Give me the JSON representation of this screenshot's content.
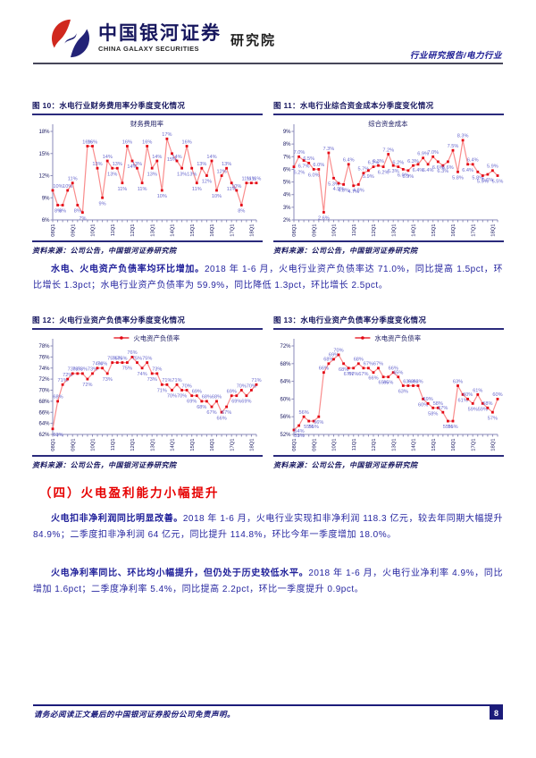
{
  "header": {
    "brand_cn": "中国银河证券",
    "brand_en": "CHINA GALAXY SECURITIES",
    "brand_suffix": "研究院",
    "doc_type": "行业研究报告/电力行业"
  },
  "colors": {
    "navy": "#16165f",
    "body_blue": "#2626a0",
    "heading_red": "#e60000",
    "line_salmon": "#f98c8c",
    "marker_red": "#e30613",
    "data_label_purple": "#6a6ace",
    "logo_red": "#d0281e",
    "logo_blue": "#232377",
    "footer_navy": "#1c1c7a"
  },
  "paragraphs": {
    "p1": {
      "bold": "水电、火电资产负债率均环比增加。",
      "rest": "2018 年 1-6 月，火电行业资产负债率达 71.0%，同比提高 1.5pct，环比增长 1.3pct；水电行业资产负债率为 59.9%，同比降低 1.3pct，环比增长 2.5pct。"
    },
    "p2": {
      "bold": "火电扣非净利润同比明显改善。",
      "rest": "2018 年 1-6 月，火电行业实现扣非净利润 118.3 亿元，较去年同期大幅提升 84.9%；二季度扣非净利润 64 亿元，同比提升 114.8%，环比今年一季度增加 18.0%。"
    },
    "p3": {
      "bold": "火电净利率同比、环比均小幅提升，但仍处于历史较低水平。",
      "rest": "2018 年 1-6 月，火电行业净利率 4.9%，同比增加 1.6pct；二季度净利率 5.4%，同比提高 2.2pct，环比一季度提升 0.9pct。"
    }
  },
  "section": {
    "heading": "（四）火电盈利能力小幅提升"
  },
  "footer": {
    "disclaimer": "请务必阅读正文最后的中国银河证券股份公司免责声明。",
    "page_number": "8"
  },
  "quarters": [
    "08Q1",
    "08Q2",
    "08Q3",
    "08Q4",
    "09Q1",
    "09Q2",
    "09Q3",
    "09Q4",
    "10Q1",
    "10Q2",
    "10Q3",
    "10Q4",
    "11Q1",
    "11Q2",
    "11Q3",
    "11Q4",
    "12Q1",
    "12Q2",
    "12Q3",
    "12Q4",
    "13Q1",
    "13Q2",
    "13Q3",
    "13Q4",
    "14Q1",
    "14Q2",
    "14Q3",
    "14Q4",
    "15Q1",
    "15Q2",
    "15Q3",
    "15Q4",
    "16Q1",
    "16Q2",
    "16Q3",
    "16Q4",
    "17Q1",
    "17Q2",
    "17Q3",
    "17Q4",
    "18Q1",
    "18Q2"
  ],
  "xtick_indices": [
    0,
    4,
    8,
    12,
    16,
    20,
    24,
    28,
    32,
    36,
    40
  ],
  "chart_data": [
    {
      "type": "line",
      "title": "图 10：水电行业财务费用率分季度变化情况",
      "legend": "财务费用率",
      "legend_marker": false,
      "source": "资料来源：公司公告，中国银河证券研究院",
      "xlabel": "",
      "ylabel": "",
      "ylim": [
        6,
        18
      ],
      "yticks": [
        6,
        9,
        12,
        15,
        18
      ],
      "decimals": 0,
      "unit": "%",
      "values": [
        10,
        8,
        8,
        10,
        11,
        8,
        7,
        16,
        16,
        13,
        9,
        14,
        13,
        13,
        11,
        16,
        14,
        13,
        11,
        16,
        13,
        14,
        10,
        17,
        15,
        14,
        13,
        16,
        13,
        11,
        13,
        12,
        14,
        10,
        12,
        13,
        11,
        10,
        8,
        11,
        11,
        11
      ]
    },
    {
      "type": "line",
      "title": "图 11：水电行业综合资金成本分季度变化情况",
      "legend": "综合资金成本",
      "legend_marker": false,
      "source": "资料来源：公司公告，中国银河证券研究院",
      "xlabel": "",
      "ylabel": "",
      "ylim": [
        2,
        9
      ],
      "yticks": [
        2,
        3,
        4,
        5,
        6,
        7,
        8,
        9
      ],
      "decimals": 1,
      "unit": "%",
      "values": [
        6.2,
        7.0,
        6.7,
        6.5,
        6.0,
        6.0,
        2.6,
        7.3,
        5.3,
        4.9,
        4.8,
        6.4,
        4.7,
        4.8,
        5.7,
        5.9,
        6.2,
        6.3,
        6.2,
        7.2,
        6.3,
        6.2,
        6.0,
        5.9,
        6.3,
        6.4,
        6.9,
        6.4,
        7.0,
        6.6,
        6.3,
        6.6,
        7.5,
        5.8,
        8.3,
        6.4,
        6.4,
        5.8,
        5.5,
        5.6,
        5.9,
        5.5
      ]
    },
    {
      "type": "line",
      "title": "图 12：火电行业资产负债率分季度变化情况",
      "legend": "火电资产负债率",
      "legend_marker": true,
      "source": "资料来源：公司公告，中国银河证券研究院",
      "xlabel": "",
      "ylabel": "",
      "ylim": [
        62,
        78
      ],
      "yticks": [
        62,
        64,
        66,
        68,
        70,
        72,
        74,
        76,
        78
      ],
      "decimals": 0,
      "unit": "%",
      "values": [
        63,
        68,
        71,
        72,
        73,
        73,
        73,
        72,
        73,
        74,
        74,
        73,
        75,
        75,
        75,
        75,
        76,
        75,
        74,
        75,
        73,
        73,
        71,
        71,
        70,
        71,
        70,
        70,
        69,
        69,
        68,
        68,
        67,
        68,
        66,
        67,
        69,
        69,
        70,
        69,
        70,
        71
      ]
    },
    {
      "type": "line",
      "title": "图 13：水电行业资产负债率分季度变化情况",
      "legend": "水电资产负债率",
      "legend_marker": true,
      "source": "资料来源：公司公告，中国银河证券研究院",
      "xlabel": "",
      "ylabel": "",
      "ylim": [
        52,
        72
      ],
      "yticks": [
        52,
        56,
        60,
        64,
        68,
        72
      ],
      "decimals": 0,
      "unit": "%",
      "values": [
        53,
        54,
        56,
        55,
        55,
        56,
        66,
        68,
        69,
        70,
        68,
        67,
        67,
        68,
        67,
        67,
        66,
        67,
        65,
        65,
        66,
        65,
        63,
        63,
        63,
        63,
        60,
        59,
        58,
        58,
        57,
        55,
        55,
        63,
        61,
        60,
        59,
        61,
        59,
        58,
        57,
        60
      ]
    }
  ]
}
